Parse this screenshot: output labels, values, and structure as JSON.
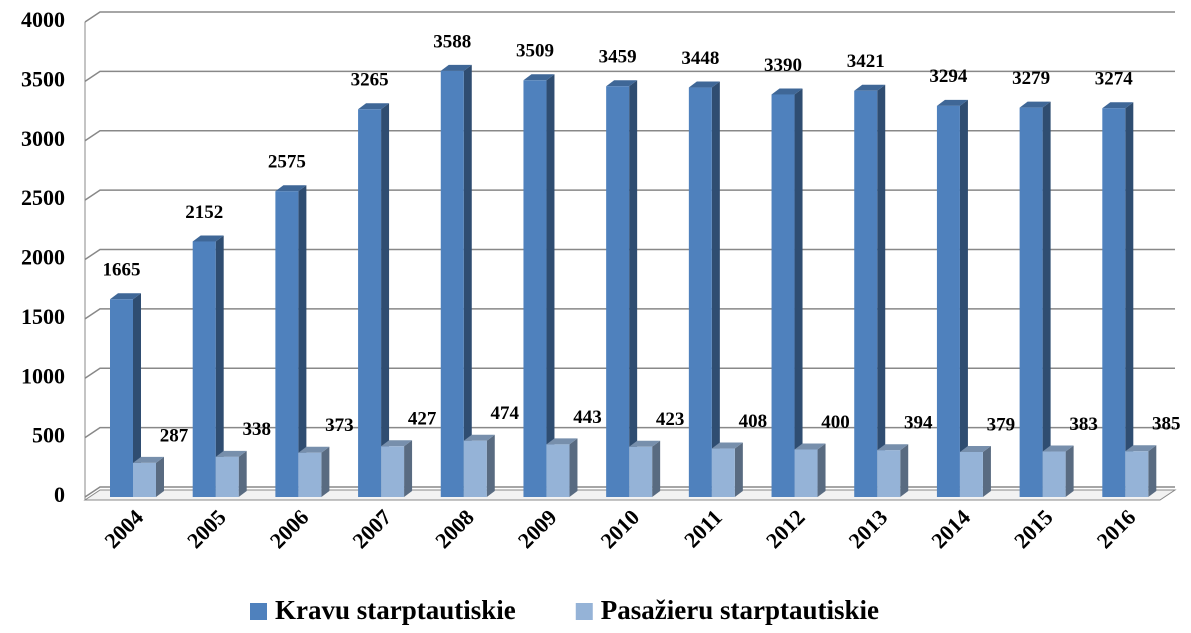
{
  "chart_data": {
    "type": "bar",
    "categories": [
      "2004",
      "2005",
      "2006",
      "2007",
      "2008",
      "2009",
      "2010",
      "2011",
      "2012",
      "2013",
      "2014",
      "2015",
      "2016"
    ],
    "series": [
      {
        "name": "Kravu starptautiskie",
        "color": "#4f81bd",
        "values": [
          1665,
          2152,
          2575,
          3265,
          3588,
          3509,
          3459,
          3448,
          3390,
          3421,
          3294,
          3279,
          3274
        ]
      },
      {
        "name": "Pasažieru starptautiskie",
        "color": "#95b3d7",
        "values": [
          287,
          338,
          373,
          427,
          474,
          443,
          423,
          408,
          400,
          394,
          379,
          383,
          385
        ]
      }
    ],
    "ylim": [
      0,
      4000
    ],
    "yticks": [
      0,
      500,
      1000,
      1500,
      2000,
      2500,
      3000,
      3500,
      4000
    ],
    "grid": true,
    "legend": "bottom"
  }
}
